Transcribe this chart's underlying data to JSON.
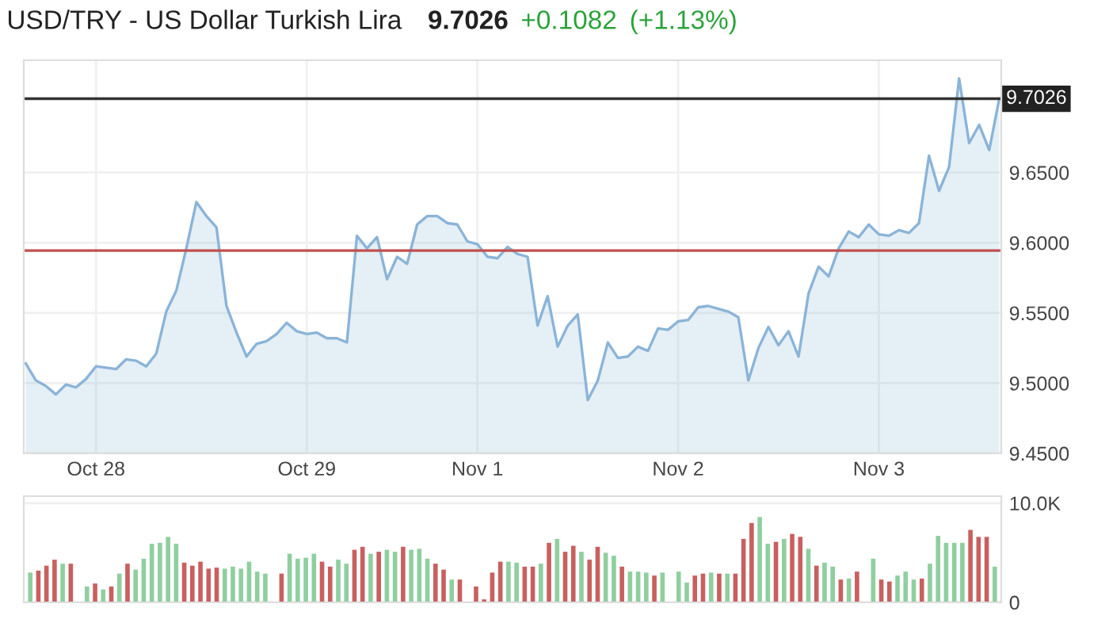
{
  "chart_data": [
    {
      "type": "area",
      "title": "USD/TRY - US Dollar Turkish Lira",
      "annotations": [
        "9.7026",
        "+0.1082",
        "(+1.13%)"
      ],
      "categories": [
        null,
        null,
        null,
        null,
        null,
        null,
        null,
        "Oct 28",
        null,
        null,
        null,
        null,
        null,
        null,
        null,
        null,
        null,
        null,
        null,
        null,
        null,
        null,
        null,
        null,
        null,
        null,
        null,
        null,
        "Oct 29",
        null,
        null,
        null,
        null,
        null,
        null,
        null,
        null,
        null,
        null,
        null,
        null,
        null,
        null,
        null,
        null,
        "Nov 1",
        null,
        null,
        null,
        null,
        null,
        null,
        null,
        null,
        null,
        null,
        null,
        null,
        null,
        null,
        null,
        null,
        null,
        null,
        null,
        "Nov 2",
        null,
        null,
        null,
        null,
        null,
        null,
        null,
        null,
        null,
        null,
        null,
        null,
        null,
        null,
        null,
        null,
        null,
        null,
        null,
        "Nov 3",
        null,
        null,
        null,
        null,
        null,
        null,
        null,
        null,
        null,
        null,
        null,
        null
      ],
      "series": [
        {
          "color": "#8ab4d8",
          "values": [
            9.514,
            9.502,
            9.498,
            9.492,
            9.499,
            9.497,
            9.503,
            9.512,
            9.511,
            9.51,
            9.517,
            9.516,
            9.512,
            9.521,
            9.551,
            9.566,
            9.596,
            9.629,
            9.619,
            9.611,
            9.555,
            9.536,
            9.519,
            9.528,
            9.53,
            9.535,
            9.543,
            9.537,
            9.535,
            9.536,
            9.532,
            9.532,
            9.529,
            9.605,
            9.596,
            9.604,
            9.574,
            9.59,
            9.585,
            9.613,
            9.619,
            9.619,
            9.614,
            9.613,
            9.601,
            9.599,
            9.59,
            9.589,
            9.597,
            9.592,
            9.59,
            9.541,
            9.562,
            9.526,
            9.541,
            9.549,
            9.488,
            9.502,
            9.529,
            9.518,
            9.519,
            9.526,
            9.523,
            9.539,
            9.538,
            9.544,
            9.545,
            9.554,
            9.555,
            9.553,
            9.551,
            9.547,
            9.502,
            9.525,
            9.54,
            9.527,
            9.537,
            9.519,
            9.564,
            9.583,
            9.576,
            9.596,
            9.608,
            9.604,
            9.613,
            9.606,
            9.605,
            9.609,
            9.607,
            9.614,
            9.662,
            9.637,
            9.654,
            9.717,
            9.671,
            9.684,
            9.666,
            9.7026
          ]
        }
      ],
      "ylim": [
        9.45,
        9.73
      ],
      "yticks": [
        {
          "value": 9.45,
          "label": "9.4500"
        },
        {
          "value": 9.5,
          "label": "9.5000"
        },
        {
          "value": 9.55,
          "label": "9.5500"
        },
        {
          "value": 9.6,
          "label": "9.6000"
        },
        {
          "value": 9.65,
          "label": "9.6500"
        }
      ],
      "ref_lines": [
        {
          "axis": "y",
          "value": 9.7026,
          "label": "9.7026",
          "color": "#333333"
        },
        {
          "axis": "y",
          "value": 9.5944,
          "color": "#c0504d"
        }
      ],
      "grid": true,
      "legend": false
    },
    {
      "type": "bar",
      "tick_labels": "y",
      "categories": [
        null,
        null,
        null,
        null,
        null,
        null,
        null,
        null,
        null,
        null,
        null,
        null,
        null,
        null,
        null,
        null,
        null,
        null,
        null,
        null,
        null,
        null,
        null,
        null,
        null,
        null,
        null,
        null,
        null,
        null,
        null,
        null,
        null,
        null,
        null,
        null,
        null,
        null,
        null,
        null,
        null,
        null,
        null,
        null,
        null,
        null,
        null,
        null,
        null,
        null,
        null,
        null,
        null,
        null,
        null,
        null,
        null,
        null,
        null,
        null,
        null,
        null,
        null,
        null,
        null,
        null,
        null,
        null,
        null,
        null,
        null,
        null,
        null,
        null,
        null,
        null,
        null,
        null,
        null,
        null,
        null,
        null,
        null,
        null,
        null,
        null,
        null,
        null,
        null,
        null,
        null,
        null,
        null,
        null,
        null,
        null,
        null,
        null,
        null,
        null,
        null,
        null,
        null,
        null,
        null,
        null,
        null,
        null,
        null,
        null,
        null,
        null,
        null,
        null,
        null,
        null,
        null,
        null,
        null,
        null
      ],
      "values": [
        3000,
        3200,
        3700,
        4300,
        3900,
        3900,
        null,
        1600,
        1900,
        1300,
        1600,
        2900,
        3900,
        3300,
        4400,
        5900,
        6000,
        6600,
        5900,
        4000,
        3700,
        4100,
        3400,
        3500,
        3400,
        3600,
        3400,
        4100,
        3100,
        2900,
        null,
        2900,
        4900,
        4400,
        4500,
        4900,
        4100,
        3600,
        4300,
        3900,
        5300,
        5600,
        4900,
        5100,
        5300,
        5100,
        5600,
        5300,
        5400,
        4400,
        3900,
        3300,
        2300,
        2300,
        null,
        1600,
        300,
        3000,
        4100,
        4100,
        4000,
        3600,
        3600,
        3900,
        6000,
        6400,
        5100,
        5700,
        5100,
        4300,
        5600,
        5000,
        4700,
        3600,
        3100,
        3100,
        3000,
        2700,
        3000,
        null,
        3100,
        2000,
        2700,
        2900,
        3000,
        2900,
        2900,
        2900,
        6400,
        8000,
        8600,
        5900,
        6100,
        6400,
        6900,
        6600,
        5400,
        3700,
        4000,
        3600,
        2300,
        2400,
        3100,
        null,
        4400,
        2300,
        2100,
        2700,
        3100,
        2300,
        2400,
        3900,
        6700,
        6000,
        6000,
        6000,
        7300,
        6600,
        6600,
        3600
      ],
      "colors": [
        "#8fcf9f",
        "#c8605f",
        "#c8605f",
        "#c8605f",
        "#8fcf9f",
        "#c8605f",
        null,
        "#8fcf9f",
        "#c8605f",
        "#8fcf9f",
        "#c8605f",
        "#8fcf9f",
        "#c8605f",
        "#8fcf9f",
        "#8fcf9f",
        "#8fcf9f",
        "#8fcf9f",
        "#8fcf9f",
        "#8fcf9f",
        "#c8605f",
        "#c8605f",
        "#c8605f",
        "#c8605f",
        "#c8605f",
        "#8fcf9f",
        "#8fcf9f",
        "#8fcf9f",
        "#8fcf9f",
        "#8fcf9f",
        "#8fcf9f",
        null,
        "#c8605f",
        "#8fcf9f",
        "#8fcf9f",
        "#8fcf9f",
        "#8fcf9f",
        "#c8605f",
        "#c8605f",
        "#8fcf9f",
        "#8fcf9f",
        "#c8605f",
        "#c8605f",
        "#8fcf9f",
        "#c8605f",
        "#8fcf9f",
        "#8fcf9f",
        "#c8605f",
        "#8fcf9f",
        "#8fcf9f",
        "#8fcf9f",
        "#c8605f",
        "#c8605f",
        "#8fcf9f",
        "#c8605f",
        null,
        "#c8605f",
        "#c8605f",
        "#c8605f",
        "#c8605f",
        "#8fcf9f",
        "#8fcf9f",
        "#c8605f",
        "#c8605f",
        "#8fcf9f",
        "#c8605f",
        "#8fcf9f",
        "#c8605f",
        "#c8605f",
        "#8fcf9f",
        "#c8605f",
        "#c8605f",
        "#8fcf9f",
        "#8fcf9f",
        "#c8605f",
        "#8fcf9f",
        "#8fcf9f",
        "#8fcf9f",
        "#c8605f",
        "#8fcf9f",
        null,
        "#8fcf9f",
        "#8fcf9f",
        "#c8605f",
        "#c8605f",
        "#8fcf9f",
        "#c8605f",
        "#8fcf9f",
        "#c8605f",
        "#c8605f",
        "#c8605f",
        "#8fcf9f",
        "#8fcf9f",
        "#c8605f",
        "#8fcf9f",
        "#c8605f",
        "#c8605f",
        "#8fcf9f",
        "#c8605f",
        "#8fcf9f",
        "#8fcf9f",
        "#c8605f",
        "#8fcf9f",
        "#c8605f",
        null,
        "#8fcf9f",
        "#c8605f",
        "#c8605f",
        "#8fcf9f",
        "#8fcf9f",
        "#8fcf9f",
        "#c8605f",
        "#8fcf9f",
        "#8fcf9f",
        "#8fcf9f",
        "#8fcf9f",
        "#8fcf9f",
        "#c8605f",
        "#c8605f",
        "#c8605f",
        "#8fcf9f"
      ],
      "ylim": [
        0,
        10700
      ],
      "yticks": [
        0,
        {
          "value": 10000,
          "label": "10.0K"
        }
      ],
      "grid": "y",
      "legend": false
    }
  ]
}
